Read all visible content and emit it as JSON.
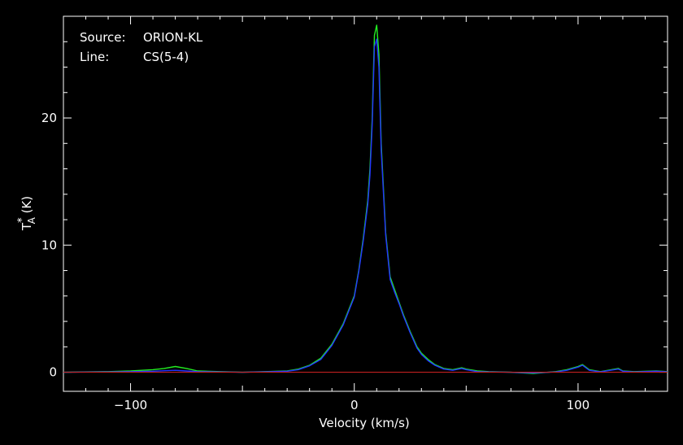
{
  "chart_data": {
    "type": "line",
    "xlabel": "Velocity (km/s)",
    "ylabel": {
      "base": "T",
      "sup": "*",
      "sub": "A",
      "unit": " (K)"
    },
    "xlim": [
      -130,
      140
    ],
    "ylim": [
      -1.5,
      28
    ],
    "xticks": [
      -100,
      0,
      100
    ],
    "yticks": [
      0,
      10,
      20
    ],
    "grid": false,
    "annotations": [
      {
        "key": "Source:",
        "value": "ORION-KL"
      },
      {
        "key": "Line:",
        "value": "CS(5-4)"
      }
    ],
    "colors": {
      "series_a": "#22ee22",
      "series_b": "#2233ff",
      "baseline": "#cc2222",
      "axes": "#ffffff"
    },
    "series": [
      {
        "x": [
          -130,
          -110,
          -100,
          -90,
          -85,
          -80,
          -75,
          -70,
          -60,
          -50,
          -40,
          -30,
          -25,
          -20,
          -15,
          -10,
          -5,
          0,
          2,
          4,
          6,
          7,
          8,
          9,
          10,
          11,
          12,
          14,
          16,
          18,
          20,
          22,
          25,
          28,
          30,
          33,
          36,
          40,
          44,
          48,
          50,
          55,
          60,
          70,
          80,
          90,
          95,
          100,
          102,
          105,
          110,
          118,
          120,
          125,
          135,
          140
        ],
        "y": [
          0,
          0.05,
          0.1,
          0.2,
          0.3,
          0.45,
          0.3,
          0.1,
          0.05,
          0.0,
          0.05,
          0.1,
          0.25,
          0.55,
          1.1,
          2.2,
          3.8,
          6.0,
          8.0,
          10.5,
          13.5,
          16.0,
          20.0,
          26.5,
          27.3,
          25.0,
          18.0,
          11.0,
          7.5,
          6.5,
          5.5,
          4.5,
          3.2,
          2.0,
          1.5,
          1.0,
          0.6,
          0.3,
          0.2,
          0.35,
          0.25,
          0.1,
          0.05,
          0.0,
          -0.1,
          0.05,
          0.2,
          0.45,
          0.6,
          0.2,
          0.05,
          0.3,
          0.1,
          0.05,
          0.1,
          0.05
        ]
      },
      {
        "x": [
          -130,
          -110,
          -100,
          -90,
          -85,
          -80,
          -75,
          -70,
          -60,
          -50,
          -40,
          -30,
          -25,
          -20,
          -15,
          -10,
          -5,
          0,
          2,
          4,
          6,
          7,
          8,
          9,
          10,
          11,
          12,
          14,
          16,
          18,
          20,
          22,
          25,
          28,
          30,
          33,
          36,
          40,
          44,
          48,
          50,
          55,
          60,
          70,
          80,
          90,
          95,
          100,
          102,
          105,
          110,
          118,
          120,
          125,
          135,
          140
        ],
        "y": [
          0,
          0.02,
          0.05,
          0.08,
          0.12,
          0.15,
          0.1,
          0.05,
          0.02,
          0.0,
          0.03,
          0.08,
          0.2,
          0.5,
          1.0,
          2.1,
          3.7,
          5.9,
          7.9,
          10.3,
          13.2,
          15.5,
          19.5,
          25.6,
          26.2,
          24.0,
          17.5,
          10.8,
          7.3,
          6.3,
          5.4,
          4.4,
          3.1,
          1.9,
          1.4,
          0.9,
          0.55,
          0.25,
          0.15,
          0.3,
          0.2,
          0.05,
          0.02,
          0.0,
          -0.05,
          0.02,
          0.15,
          0.4,
          0.55,
          0.15,
          0.03,
          0.25,
          0.08,
          0.02,
          0.08,
          0.03
        ]
      }
    ]
  }
}
